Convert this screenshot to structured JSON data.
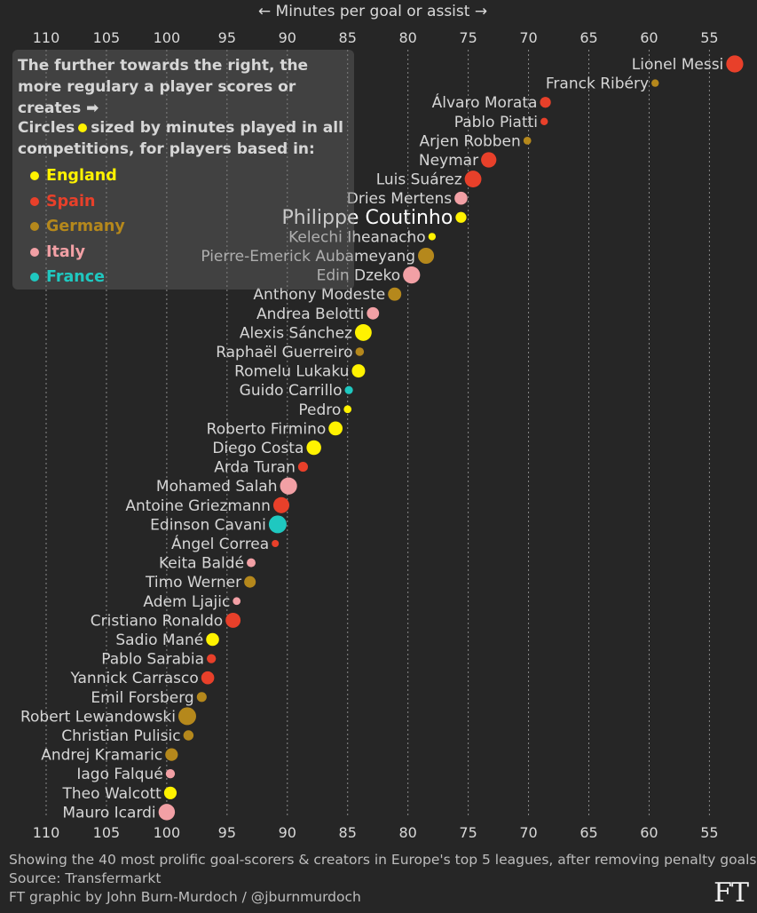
{
  "chart_data": {
    "type": "scatter",
    "title": "← Minutes per goal or assist →",
    "xlabel": "Minutes per goal or assist",
    "x_reversed": true,
    "xlim": [
      112,
      52
    ],
    "xticks": [
      110,
      105,
      100,
      95,
      90,
      85,
      80,
      75,
      70,
      65,
      60,
      55
    ],
    "grid": true,
    "colors": {
      "England": "#fff200",
      "Spain": "#e8402a",
      "Germany": "#b5881c",
      "Italy": "#f2a0a5",
      "France": "#1fc8c0"
    },
    "highlight": "Philippe Coutinho",
    "players": [
      {
        "name": "Lionel Messi",
        "value": 52.9,
        "league": "Spain",
        "minutes": 4400
      },
      {
        "name": "Franck Ribéry",
        "value": 59.5,
        "league": "Germany",
        "minutes": 1600
      },
      {
        "name": "Álvaro Morata",
        "value": 68.6,
        "league": "Spain",
        "minutes": 2600
      },
      {
        "name": "Pablo Piatti",
        "value": 68.7,
        "league": "Spain",
        "minutes": 1600
      },
      {
        "name": "Arjen Robben",
        "value": 70.1,
        "league": "Germany",
        "minutes": 1700
      },
      {
        "name": "Neymar",
        "value": 73.3,
        "league": "Spain",
        "minutes": 3900
      },
      {
        "name": "Luis Suárez",
        "value": 74.6,
        "league": "Spain",
        "minutes": 4300
      },
      {
        "name": "Dries Mertens",
        "value": 75.6,
        "league": "Italy",
        "minutes": 3200
      },
      {
        "name": "Philippe Coutinho",
        "value": 75.6,
        "league": "England",
        "minutes": 2600
      },
      {
        "name": "Kelechi Iheanacho",
        "value": 78.0,
        "league": "England",
        "minutes": 1600
      },
      {
        "name": "Pierre-Emerick Aubameyang",
        "value": 78.5,
        "league": "Germany",
        "minutes": 4100
      },
      {
        "name": "Edin Dzeko",
        "value": 79.7,
        "league": "Italy",
        "minutes": 4400
      },
      {
        "name": "Anthony Modeste",
        "value": 81.1,
        "league": "Germany",
        "minutes": 3300
      },
      {
        "name": "Andrea Belotti",
        "value": 82.9,
        "league": "Italy",
        "minutes": 3000
      },
      {
        "name": "Alexis Sánchez",
        "value": 83.7,
        "league": "England",
        "minutes": 4300
      },
      {
        "name": "Raphaël Guerreiro",
        "value": 84.0,
        "league": "Germany",
        "minutes": 1900
      },
      {
        "name": "Romelu Lukaku",
        "value": 84.1,
        "league": "England",
        "minutes": 3300
      },
      {
        "name": "Guido Carrillo",
        "value": 84.9,
        "league": "France",
        "minutes": 1800
      },
      {
        "name": "Pedro",
        "value": 85.0,
        "league": "England",
        "minutes": 1700
      },
      {
        "name": "Roberto Firmino",
        "value": 86.0,
        "league": "England",
        "minutes": 3500
      },
      {
        "name": "Diego Costa",
        "value": 87.8,
        "league": "England",
        "minutes": 3700
      },
      {
        "name": "Arda Turan",
        "value": 88.7,
        "league": "Spain",
        "minutes": 2300
      },
      {
        "name": "Mohamed Salah",
        "value": 89.9,
        "league": "Italy",
        "minutes": 4400
      },
      {
        "name": "Antoine Griezmann",
        "value": 90.5,
        "league": "Spain",
        "minutes": 4100
      },
      {
        "name": "Edinson Cavani",
        "value": 90.8,
        "league": "France",
        "minutes": 4600
      },
      {
        "name": "Ángel Correa",
        "value": 91.0,
        "league": "Spain",
        "minutes": 1500
      },
      {
        "name": "Keita Baldé",
        "value": 93.0,
        "league": "Italy",
        "minutes": 2000
      },
      {
        "name": "Timo Werner",
        "value": 93.1,
        "league": "Germany",
        "minutes": 2800
      },
      {
        "name": "Adem Ljajic",
        "value": 94.2,
        "league": "Italy",
        "minutes": 1700
      },
      {
        "name": "Cristiano Ronaldo",
        "value": 94.5,
        "league": "Spain",
        "minutes": 3800
      },
      {
        "name": "Sadio Mané",
        "value": 96.2,
        "league": "England",
        "minutes": 3200
      },
      {
        "name": "Pablo Sarabia",
        "value": 96.3,
        "league": "Spain",
        "minutes": 2100
      },
      {
        "name": "Yannick Carrasco",
        "value": 96.6,
        "league": "Spain",
        "minutes": 3200
      },
      {
        "name": "Emil Forsberg",
        "value": 97.1,
        "league": "Germany",
        "minutes": 2300
      },
      {
        "name": "Robert Lewandowski",
        "value": 98.3,
        "league": "Germany",
        "minutes": 4600
      },
      {
        "name": "Christian Pulisic",
        "value": 98.2,
        "league": "Germany",
        "minutes": 2400
      },
      {
        "name": "Andrej Kramaric",
        "value": 99.6,
        "league": "Germany",
        "minutes": 3100
      },
      {
        "name": "Iago Falqué",
        "value": 99.7,
        "league": "Italy",
        "minutes": 2100
      },
      {
        "name": "Theo Walcott",
        "value": 99.7,
        "league": "England",
        "minutes": 3100
      },
      {
        "name": "Mauro Icardi",
        "value": 100.0,
        "league": "Italy",
        "minutes": 4200
      }
    ]
  },
  "header": {
    "axis_title": "← Minutes per goal or assist →"
  },
  "legend": {
    "intro": "The further towards the right, the more regulary a player scores or creates ➡",
    "sub_before": "Circles",
    "sub_after": "sized by minutes played in all competitions, for players based in:",
    "items": [
      {
        "label": "England",
        "color": "#fff200"
      },
      {
        "label": "Spain",
        "color": "#e8402a"
      },
      {
        "label": "Germany",
        "color": "#b5881c"
      },
      {
        "label": "Italy",
        "color": "#f2a0a5"
      },
      {
        "label": "France",
        "color": "#1fc8c0"
      }
    ]
  },
  "footer": {
    "note": "Showing the 40 most prolific goal-scorers & creators in Europe's top 5 leagues, after removing penalty goals",
    "source": "Source: Transfermarkt",
    "credit": "FT graphic by John Burn-Murdoch / @jburnmurdoch",
    "logo": "FT"
  }
}
